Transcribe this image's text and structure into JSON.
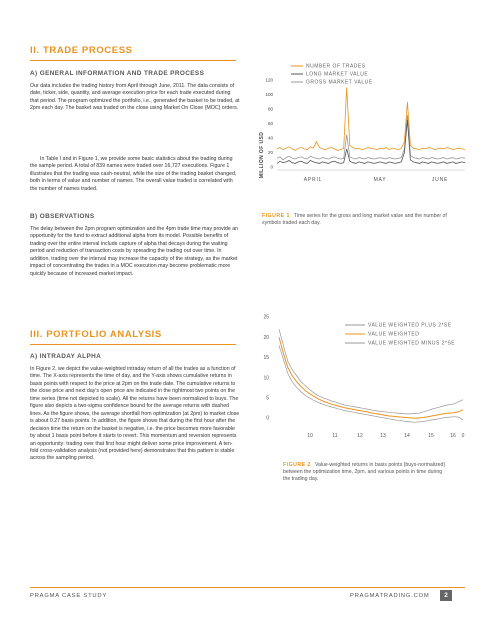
{
  "section2": {
    "title": "II.   TRADE PROCESS",
    "sub_a": "A) GENERAL INFORMATION AND TRADE PROCESS",
    "para_a1": "Our data includes the trading history from April through June, 2011. The data consists of date, ticker, side, quantity, and average execution price for each trade executed during that period. The program optimized the portfolio, i.e., generated the basket to be traded, at 2pm each day. The basket was traded on the close using Market On Close (MOC) orders.",
    "para_a2": "In Table I and in Figure 1, we provide some basic statistics about the trading during the sample period. A total of 839 names were traded over 16,727 executions. Figure 1 illustrates that the trading was cash-neutral, while the size of the trading basket changed, both in terms of value and number of names. The overall value traded is correlated with the number of names traded.",
    "sub_b": "B) OBSERVATIONS",
    "para_b": "The delay between the 2pm program optimization and the 4pm trade time may provide an opportunity for the fund to extract additional alpha from its model. Possible benefits of trading over the entire interval include capture of alpha that decays during the waiting period and reduction of transaction costs by spreading the trading out over time. In addition, trading over the interval may increase the capacity of the strategy, as the market impact of concentrating the trades in a MOC execution may become problematic more quickly because of increased market impact."
  },
  "section3": {
    "title": "III.   PORTFOLIO ANALYSIS",
    "sub_a": "A) INTRADAY ALPHA",
    "para_a": "In Figure 2, we depict the value-weighted intraday return of all the trades as a function of time. The X-axis represents the time of day, and the Y-axis shows cumulative returns in basis points with respect to the price at 2pm on the trade date. The cumulative returns to the close price and next day's open price are indicated in the rightmost two points on the time series (time not depicted to scale). All the returns have been normalized to buys. The figure also depicts a two-sigma confidence bound for the average returns with dashed lines. As the figure shows, the average shortfall from optimization (at 2pm) to market close is about 0.27 basis points. In addition, the figure shows that during the first hour after the decision time the return on the basket is negative, i.e. the price becomes more favorable by about 1 basis point before it starts to revert. This momentum and reversion represents an opportunity: trading over that first hour might deliver some price improvement. A ten-fold cross-validation analysis (not provided here) demonstrates that this pattern is stable across the sampling period."
  },
  "figure1": {
    "label": "FIGURE 1",
    "caption": "Time series for the gross and long market value and the number of symbols traded each day.",
    "ylabel": "MILLION OF USD",
    "legend": [
      "NUMBER OF TRADES",
      "LONG MARKET VALUE",
      "GROSS MARKET VALUE"
    ]
  },
  "figure2": {
    "label": "FIGURE 2",
    "caption": "Value-weighted returns in basis points (buys-normalized) between the optimization time, 2pm, and various points in time during the trading day.",
    "legend": [
      "VALUE WEIGHTED PLUS 2*SE",
      "VALUE WEIGHTED",
      "VALUE WEIGHTED MINUS 2*SE"
    ]
  },
  "footer": {
    "left": "PRAGMA CASE STUDY",
    "right": "PRAGMATRADING.COM",
    "page": "2"
  },
  "colors": {
    "accent": "#e8941f",
    "long": "#555555",
    "gross": "#999999"
  },
  "chart_data": [
    {
      "type": "line",
      "title": "",
      "ylabel": "MILLION OF USD",
      "x_ticks": [
        "APRIL",
        "MAY",
        "JUNE"
      ],
      "y_ticks": [
        "0",
        "20",
        "40",
        "60",
        "80",
        "100",
        "120"
      ],
      "ylim": [
        0,
        130
      ],
      "legend_position": "top-left",
      "series": [
        {
          "name": "NUMBER OF TRADES",
          "color": "#e8941f",
          "values": [
            25,
            27,
            24,
            26,
            28,
            25,
            23,
            26,
            27,
            25,
            24,
            28,
            26,
            35,
            27,
            25,
            24,
            26,
            27,
            25,
            23,
            24,
            26,
            110,
            30,
            27,
            25,
            26,
            24,
            25,
            27,
            26,
            25,
            24,
            26,
            25,
            27,
            24,
            26,
            25,
            24,
            26,
            35,
            90,
            30,
            26,
            25,
            24,
            26,
            25,
            27,
            26,
            24,
            25,
            26,
            25,
            27,
            26,
            24,
            25,
            26,
            25,
            24
          ]
        },
        {
          "name": "LONG MARKET VALUE",
          "color": "#555555",
          "values": [
            5,
            8,
            6,
            7,
            9,
            6,
            5,
            7,
            8,
            6,
            5,
            9,
            7,
            6,
            5,
            7,
            6,
            5,
            7,
            8,
            6,
            5,
            6,
            25,
            8,
            6,
            5,
            7,
            6,
            5,
            7,
            6,
            5,
            6,
            7,
            6,
            5,
            7,
            6,
            5,
            6,
            7,
            20,
            65,
            10,
            7,
            6,
            5,
            7,
            6,
            5,
            7,
            6,
            5,
            6,
            7,
            5,
            6,
            7,
            5,
            6,
            7,
            6
          ]
        },
        {
          "name": "GROSS MARKET VALUE",
          "color": "#999999",
          "values": [
            12,
            14,
            10,
            13,
            15,
            12,
            11,
            13,
            14,
            12,
            11,
            15,
            13,
            12,
            11,
            13,
            12,
            11,
            13,
            14,
            12,
            11,
            12,
            45,
            14,
            12,
            11,
            13,
            12,
            11,
            13,
            12,
            11,
            12,
            13,
            12,
            11,
            13,
            12,
            11,
            12,
            13,
            25,
            72,
            16,
            13,
            12,
            11,
            13,
            12,
            11,
            13,
            12,
            11,
            12,
            13,
            11,
            12,
            13,
            11,
            12,
            13,
            12
          ]
        }
      ]
    },
    {
      "type": "line",
      "title": "",
      "x_ticks": [
        "10",
        "11",
        "12",
        "13",
        "14",
        "15",
        "16",
        "0"
      ],
      "y_ticks": [
        "0",
        "5",
        "10",
        "15",
        "20",
        "25"
      ],
      "ylim": [
        -3,
        26
      ],
      "legend_position": "top-right",
      "series": [
        {
          "name": "VALUE WEIGHTED PLUS 2*SE",
          "color": "#999999",
          "values": [
            22,
            18,
            14,
            12,
            10.5,
            9,
            8,
            7,
            6.2,
            5.5,
            5,
            4.6,
            4.2,
            3.9,
            3.5,
            3.2,
            3,
            2.8,
            2.6,
            2.4,
            2.2,
            2,
            1.8,
            1.6,
            1.5,
            1.4,
            1.3,
            1.2,
            1.1,
            1,
            1,
            1.1,
            1.2,
            1.5,
            1.8,
            2.2,
            2.5,
            2.8,
            3.1,
            3.3,
            3.5,
            4,
            4.5
          ]
        },
        {
          "name": "VALUE WEIGHTED",
          "color": "#e8941f",
          "values": [
            20,
            16,
            12.5,
            10.5,
            9,
            7.8,
            6.8,
            6,
            5.3,
            4.7,
            4.2,
            3.8,
            3.4,
            3.1,
            2.8,
            2.5,
            2.3,
            2.1,
            1.9,
            1.7,
            1.5,
            1.3,
            1.1,
            0.9,
            0.7,
            0.5,
            0.4,
            0.3,
            0.2,
            0.1,
            0,
            -0.1,
            0,
            0.1,
            0.3,
            0.5,
            0.7,
            0.9,
            1.1,
            1.2,
            1.3,
            1.5,
            2
          ]
        },
        {
          "name": "VALUE WEIGHTED MINUS 2*SE",
          "color": "#999999",
          "values": [
            18,
            14.5,
            11,
            9,
            7.6,
            6.5,
            5.6,
            4.9,
            4.3,
            3.8,
            3.4,
            3,
            2.7,
            2.4,
            2.1,
            1.8,
            1.6,
            1.4,
            1.2,
            1,
            0.8,
            0.6,
            0.4,
            0.2,
            0,
            -0.2,
            -0.4,
            -0.6,
            -0.7,
            -0.9,
            -1,
            -1.1,
            -1,
            -0.9,
            -0.7,
            -0.5,
            -0.3,
            -0.1,
            0.1,
            0.2,
            0.3,
            0.2,
            -0.5
          ]
        }
      ]
    }
  ]
}
